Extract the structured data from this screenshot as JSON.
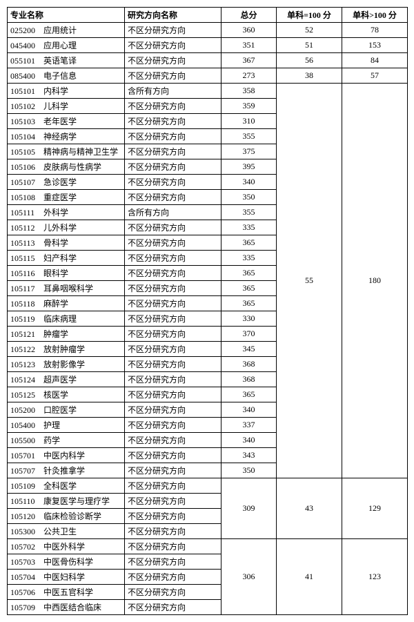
{
  "headers": {
    "major": "专业名称",
    "direction": "研究方向名称",
    "total": "总分",
    "sub1": "单科=100 分",
    "sub2": "单科>100 分"
  },
  "direction_default": "不区分研究方向",
  "direction_all": "含所有方向",
  "top_rows": [
    {
      "code": "025200",
      "name": "应用统计",
      "total": 360,
      "s1": 52,
      "s2": 78
    },
    {
      "code": "045400",
      "name": "应用心理",
      "total": 351,
      "s1": 51,
      "s2": 153
    },
    {
      "code": "055101",
      "name": "英语笔译",
      "total": 367,
      "s1": 56,
      "s2": 84
    },
    {
      "code": "085400",
      "name": "电子信息",
      "total": 273,
      "s1": 38,
      "s2": 57
    }
  ],
  "group1": {
    "s1": 55,
    "s2": 180,
    "rows": [
      {
        "code": "105101",
        "name": "内科学",
        "dir": "含所有方向",
        "total": 358
      },
      {
        "code": "105102",
        "name": "儿科学",
        "total": 359
      },
      {
        "code": "105103",
        "name": "老年医学",
        "total": 310
      },
      {
        "code": "105104",
        "name": "神经病学",
        "total": 355
      },
      {
        "code": "105105",
        "name": "精神病与精神卫生学",
        "total": 375
      },
      {
        "code": "105106",
        "name": "皮肤病与性病学",
        "total": 395
      },
      {
        "code": "105107",
        "name": "急诊医学",
        "total": 340
      },
      {
        "code": "105108",
        "name": "重症医学",
        "total": 350
      },
      {
        "code": "105111",
        "name": "外科学",
        "dir": "含所有方向",
        "total": 355
      },
      {
        "code": "105112",
        "name": "儿外科学",
        "total": 335
      },
      {
        "code": "105113",
        "name": "骨科学",
        "total": 365
      },
      {
        "code": "105115",
        "name": "妇产科学",
        "total": 335
      },
      {
        "code": "105116",
        "name": "眼科学",
        "total": 365
      },
      {
        "code": "105117",
        "name": "耳鼻咽喉科学",
        "total": 365
      },
      {
        "code": "105118",
        "name": "麻醉学",
        "total": 365
      },
      {
        "code": "105119",
        "name": "临床病理",
        "total": 330
      },
      {
        "code": "105121",
        "name": "肿瘤学",
        "total": 370
      },
      {
        "code": "105122",
        "name": "放射肿瘤学",
        "total": 345
      },
      {
        "code": "105123",
        "name": "放射影像学",
        "total": 368
      },
      {
        "code": "105124",
        "name": "超声医学",
        "total": 368
      },
      {
        "code": "105125",
        "name": "核医学",
        "total": 365
      },
      {
        "code": "105200",
        "name": "口腔医学",
        "total": 340
      },
      {
        "code": "105400",
        "name": "护理",
        "total": 337
      },
      {
        "code": "105500",
        "name": "药学",
        "total": 340
      },
      {
        "code": "105701",
        "name": "中医内科学",
        "total": 343
      },
      {
        "code": "105707",
        "name": "针灸推拿学",
        "total": 350
      }
    ]
  },
  "group2": {
    "total": 309,
    "s1": 43,
    "s2": 129,
    "rows": [
      {
        "code": "105109",
        "name": "全科医学"
      },
      {
        "code": "105110",
        "name": "康复医学与理疗学"
      },
      {
        "code": "105120",
        "name": "临床检验诊断学"
      },
      {
        "code": "105300",
        "name": "公共卫生"
      }
    ]
  },
  "group3": {
    "total": 306,
    "s1": 41,
    "s2": 123,
    "rows": [
      {
        "code": "105702",
        "name": "中医外科学"
      },
      {
        "code": "105703",
        "name": "中医骨伤科学"
      },
      {
        "code": "105704",
        "name": "中医妇科学"
      },
      {
        "code": "105706",
        "name": "中医五官科学"
      },
      {
        "code": "105709",
        "name": "中西医结合临床"
      }
    ]
  }
}
